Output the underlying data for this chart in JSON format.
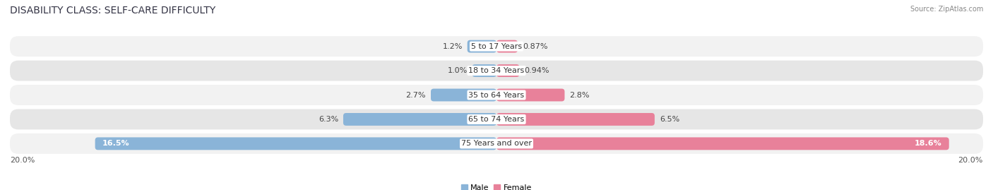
{
  "title": "DISABILITY CLASS: SELF-CARE DIFFICULTY",
  "source": "Source: ZipAtlas.com",
  "categories": [
    "5 to 17 Years",
    "18 to 34 Years",
    "35 to 64 Years",
    "65 to 74 Years",
    "75 Years and over"
  ],
  "male_values": [
    1.2,
    1.0,
    2.7,
    6.3,
    16.5
  ],
  "female_values": [
    0.87,
    0.94,
    2.8,
    6.5,
    18.6
  ],
  "male_color": "#8ab4d8",
  "female_color": "#e8819a",
  "row_bg_light": "#f2f2f2",
  "row_bg_dark": "#e6e6e6",
  "max_val": 20.0,
  "axis_label_left": "20.0%",
  "axis_label_right": "20.0%",
  "title_fontsize": 10,
  "label_fontsize": 8,
  "cat_fontsize": 8,
  "bar_height": 0.52,
  "legend_male": "Male",
  "legend_female": "Female"
}
